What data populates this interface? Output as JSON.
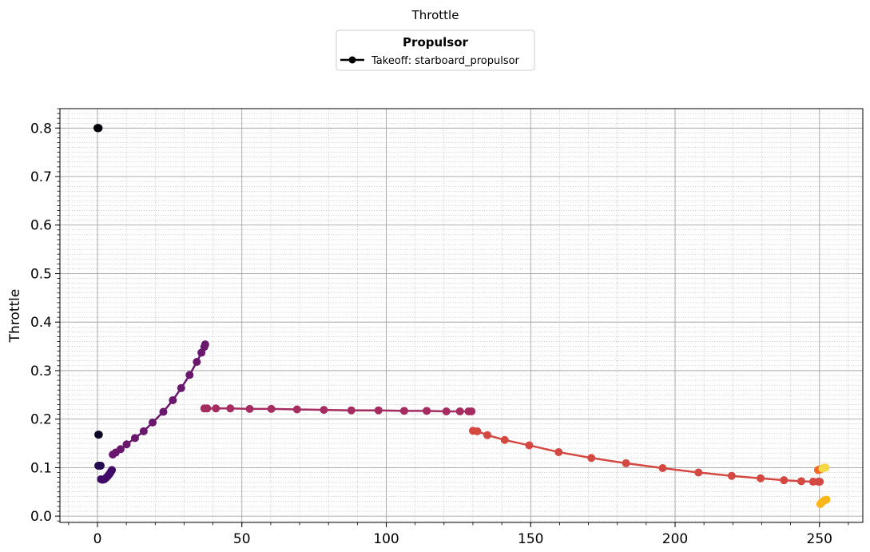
{
  "chart_data": {
    "type": "line",
    "title": "Throttle",
    "ylabel": "Throttle",
    "xlabel": "",
    "xlim": [
      -13,
      265
    ],
    "ylim": [
      -0.013,
      0.84
    ],
    "xticks": [
      0,
      50,
      100,
      150,
      200,
      250
    ],
    "xtick_labels": [
      "0",
      "50",
      "100",
      "150",
      "200",
      "250"
    ],
    "yticks": [
      0.0,
      0.1,
      0.2,
      0.3,
      0.4,
      0.5,
      0.6,
      0.7,
      0.8
    ],
    "ytick_labels": [
      "0.0",
      "0.1",
      "0.2",
      "0.3",
      "0.4",
      "0.5",
      "0.6",
      "0.7",
      "0.8"
    ],
    "xminor_step": 10,
    "yminor_step": 0.01,
    "grid": true,
    "legend": {
      "title": "Propulsor",
      "placement": "top-center",
      "entries": [
        {
          "label": "Takeoff: starboard_propulsor",
          "color": "#000000"
        }
      ]
    },
    "colormap": "inferno",
    "series": [
      {
        "name": "Takeoff: starboard_propulsor",
        "segments": [
          {
            "color": "#000004",
            "points": [
              [
                0,
                0.8
              ],
              [
                0.1,
                0.8
              ],
              [
                0.2,
                0.8
              ],
              [
                0.3,
                0.8
              ],
              [
                0.4,
                0.8
              ]
            ]
          },
          {
            "color": "#0c0826",
            "points": [
              [
                0.3,
                0.168
              ],
              [
                0.5,
                0.168
              ]
            ]
          },
          {
            "color": "#240c4f",
            "points": [
              [
                0.3,
                0.104
              ],
              [
                0.5,
                0.104
              ],
              [
                0.7,
                0.104
              ],
              [
                0.9,
                0.104
              ],
              [
                1.1,
                0.104
              ]
            ]
          },
          {
            "color": "#420a68",
            "points": [
              [
                1.2,
                0.076
              ],
              [
                1.8,
                0.075
              ],
              [
                2.4,
                0.076
              ],
              [
                3.0,
                0.079
              ],
              [
                3.5,
                0.082
              ],
              [
                3.9,
                0.085
              ],
              [
                4.3,
                0.088
              ],
              [
                4.7,
                0.092
              ],
              [
                5.0,
                0.095
              ]
            ]
          },
          {
            "color": "#6a176e",
            "points": [
              [
                5.3,
                0.127
              ],
              [
                6.3,
                0.131
              ],
              [
                8.0,
                0.138
              ],
              [
                10.1,
                0.148
              ],
              [
                13.0,
                0.161
              ],
              [
                16.0,
                0.175
              ],
              [
                19.1,
                0.193
              ],
              [
                22.8,
                0.215
              ],
              [
                26.1,
                0.239
              ],
              [
                29.0,
                0.264
              ],
              [
                31.9,
                0.291
              ],
              [
                34.4,
                0.318
              ],
              [
                36.0,
                0.337
              ],
              [
                37.0,
                0.349
              ],
              [
                37.3,
                0.354
              ]
            ]
          },
          {
            "color": "#a52c60",
            "points": [
              [
                37.0,
                0.222
              ],
              [
                38.0,
                0.222
              ],
              [
                41.0,
                0.222
              ],
              [
                46.0,
                0.222
              ],
              [
                52.7,
                0.221
              ],
              [
                60.2,
                0.221
              ],
              [
                69.1,
                0.22
              ],
              [
                78.4,
                0.219
              ],
              [
                87.9,
                0.218
              ],
              [
                97.3,
                0.218
              ],
              [
                106.2,
                0.217
              ],
              [
                114.0,
                0.217
              ],
              [
                120.8,
                0.216
              ],
              [
                125.5,
                0.216
              ],
              [
                128.5,
                0.216
              ],
              [
                129.5,
                0.216
              ]
            ]
          },
          {
            "color": "#d44842",
            "points": [
              [
                130.0,
                0.176
              ],
              [
                131.5,
                0.175
              ],
              [
                135.0,
                0.167
              ],
              [
                141.0,
                0.157
              ],
              [
                149.5,
                0.146
              ],
              [
                159.7,
                0.132
              ],
              [
                171.0,
                0.12
              ],
              [
                183.0,
                0.109
              ],
              [
                195.7,
                0.099
              ],
              [
                208.1,
                0.09
              ],
              [
                219.6,
                0.083
              ],
              [
                229.6,
                0.078
              ],
              [
                237.7,
                0.074
              ],
              [
                243.7,
                0.072
              ],
              [
                247.8,
                0.071
              ],
              [
                249.6,
                0.071
              ],
              [
                250.1,
                0.071
              ]
            ]
          },
          {
            "color": "#ed6925",
            "points": [
              [
                249.5,
                0.095
              ],
              [
                250.0,
                0.096
              ],
              [
                250.6,
                0.097
              ]
            ]
          },
          {
            "color": "#fbb61a",
            "points": [
              [
                250.3,
                0.025
              ],
              [
                250.6,
                0.027
              ],
              [
                251.1,
                0.03
              ],
              [
                251.6,
                0.032
              ],
              [
                252.0,
                0.033
              ],
              [
                252.4,
                0.034
              ]
            ]
          },
          {
            "color": "#f6d746",
            "points": [
              [
                251.0,
                0.098
              ],
              [
                251.6,
                0.1
              ],
              [
                252.1,
                0.1
              ]
            ]
          }
        ]
      }
    ]
  }
}
